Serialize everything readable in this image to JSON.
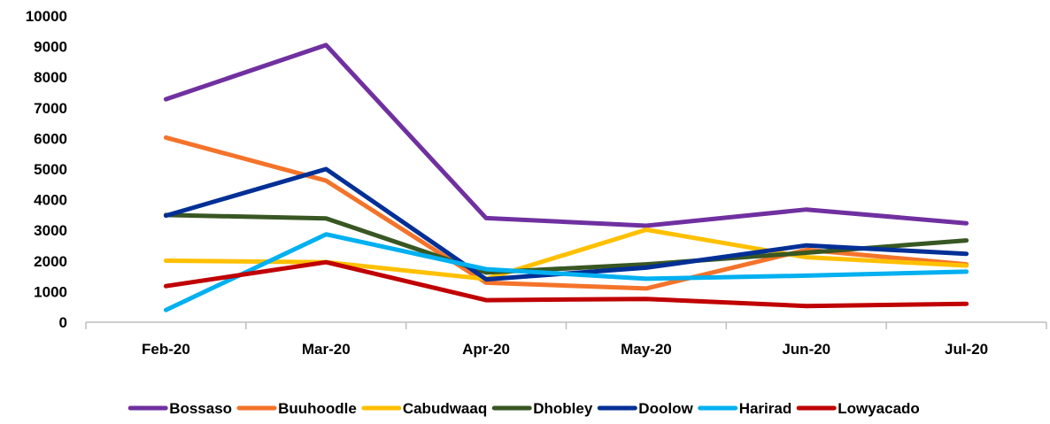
{
  "chart_data": {
    "type": "line",
    "categories": [
      "Feb-20",
      "Mar-20",
      "Apr-20",
      "May-20",
      "Jun-20",
      "Jul-20"
    ],
    "ylim": [
      0,
      10000
    ],
    "yticks": [
      0,
      1000,
      2000,
      3000,
      4000,
      5000,
      6000,
      7000,
      8000,
      9000,
      10000
    ],
    "grid": false,
    "legend_position": "bottom",
    "series": [
      {
        "name": "Bossaso",
        "color": "#7030a0",
        "values": [
          7280,
          9050,
          3400,
          3150,
          3680,
          3230
        ]
      },
      {
        "name": "Buuhoodle",
        "color": "#f4732a",
        "values": [
          6030,
          4620,
          1290,
          1100,
          2360,
          1890
        ]
      },
      {
        "name": "Cabudwaaq",
        "color": "#ffc000",
        "values": [
          2010,
          1960,
          1410,
          3020,
          2120,
          1850
        ]
      },
      {
        "name": "Dhobley",
        "color": "#385723",
        "values": [
          3500,
          3390,
          1620,
          1890,
          2270,
          2670
        ]
      },
      {
        "name": "Doolow",
        "color": "#002f96",
        "values": [
          3480,
          5000,
          1400,
          1780,
          2510,
          2230
        ]
      },
      {
        "name": "Harirad",
        "color": "#00b0f0",
        "values": [
          400,
          2870,
          1730,
          1420,
          1520,
          1650
        ]
      },
      {
        "name": "Lowyacado",
        "color": "#c00000",
        "values": [
          1180,
          1960,
          720,
          760,
          530,
          600
        ]
      }
    ]
  }
}
